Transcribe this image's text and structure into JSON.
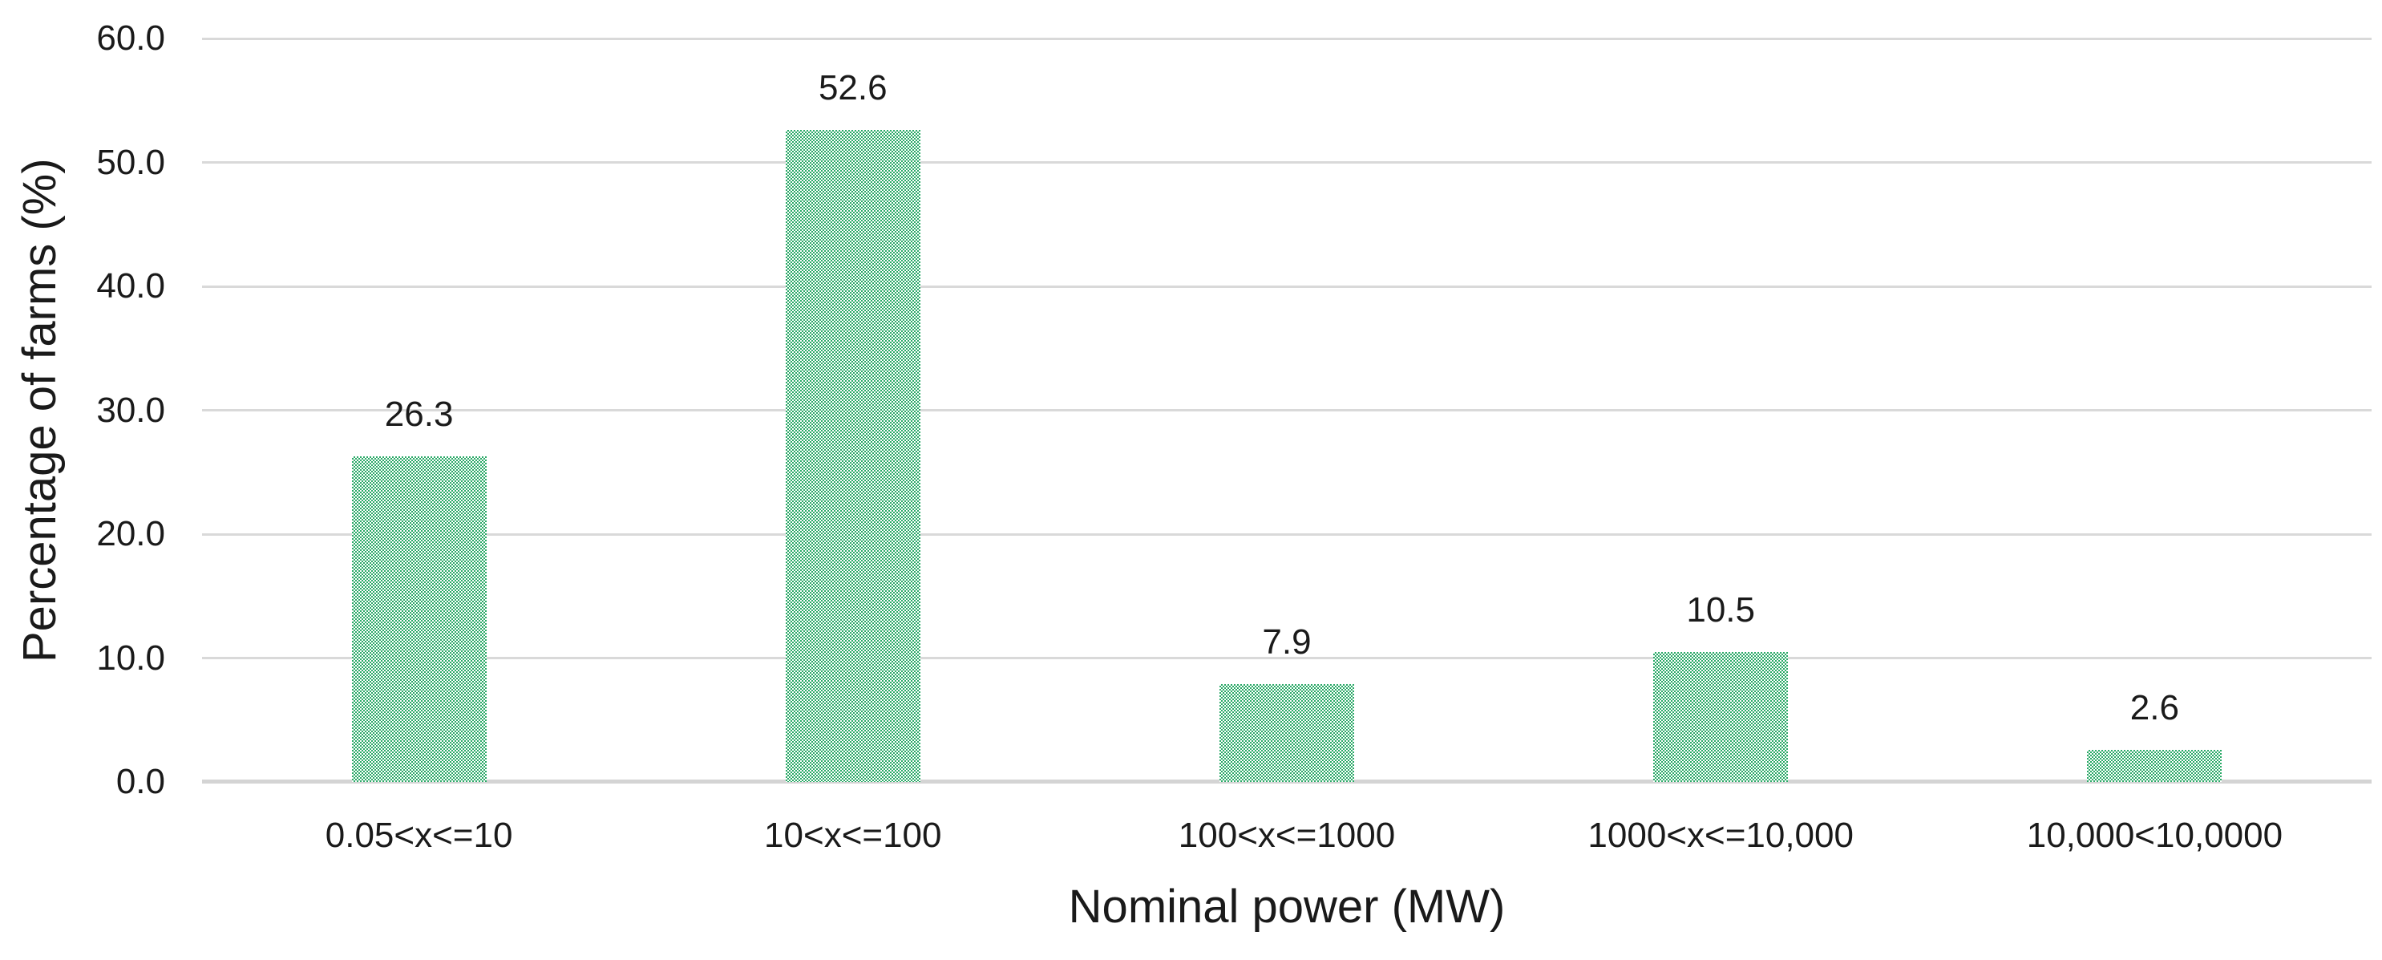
{
  "chart_data": {
    "type": "bar",
    "title": "",
    "xlabel": "Nominal power (MW)",
    "ylabel": "Percentage of farms (%)",
    "categories": [
      "0.05<x<=10",
      "10<x<=100",
      "100<x<=1000",
      "1000<x<=10,000",
      "10,000<10,0000"
    ],
    "values": [
      26.3,
      52.6,
      7.9,
      10.5,
      2.6
    ],
    "data_labels": [
      "26.3",
      "52.6",
      "7.9",
      "10.5",
      "2.6"
    ],
    "y_ticks": [
      "60.0",
      "50.0",
      "40.0",
      "30.0",
      "20.0",
      "10.0",
      "0.0"
    ],
    "ylim": [
      0,
      60
    ],
    "y_tick_step": 10,
    "grid": "horizontal-only",
    "legend": "none",
    "bar_fill": {
      "pattern": "fine-checkerboard",
      "color": "#2aa967",
      "background": "#ffffff"
    },
    "grid_color": "#d9d9d9",
    "axis_line_color": "#d4d4d4",
    "text_color": "#1a1a1a"
  }
}
